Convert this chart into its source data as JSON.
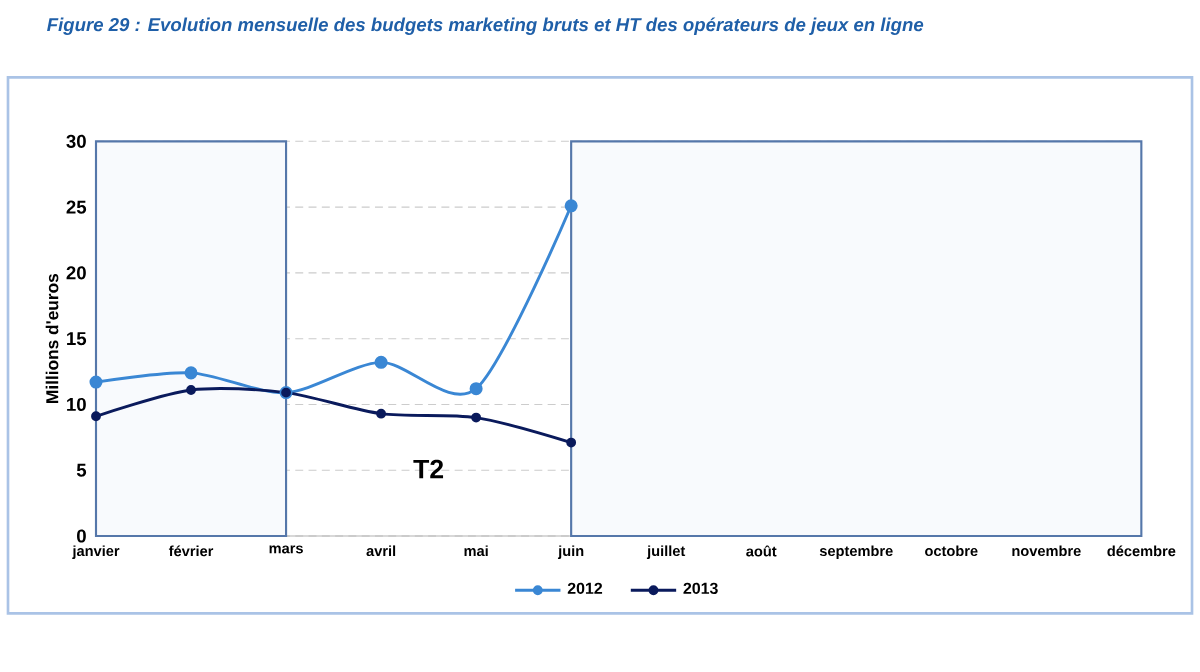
{
  "chart_data": {
    "type": "line",
    "title": "Figure 29 : Evolution mensuelle des budgets marketing bruts et HT des opérateurs de jeux en ligne",
    "ylabel": "Millions d'euros",
    "categories": [
      "janvier",
      "février",
      "mars",
      "avril",
      "mai",
      "juin",
      "juillet",
      "août",
      "septembre",
      "octobre",
      "novembre",
      "décembre"
    ],
    "series": [
      {
        "name": "2012",
        "color": "#3a87d4",
        "values": [
          11.7,
          12.4,
          10.9,
          13.2,
          11.2,
          25.1,
          null,
          null,
          null,
          null,
          null,
          null
        ]
      },
      {
        "name": "2013",
        "color": "#0a1a5c",
        "values": [
          9.1,
          11.1,
          10.9,
          9.3,
          9.0,
          7.1,
          null,
          null,
          null,
          null,
          null,
          null
        ]
      }
    ],
    "ylim": [
      0,
      30
    ],
    "yticks": [
      0,
      5,
      10,
      15,
      20,
      25,
      30
    ],
    "bands": [
      {
        "axis": "x",
        "from": "janvier",
        "to": "mars",
        "color": "#5577aa"
      },
      {
        "axis": "x",
        "from": "juin",
        "to": "décembre",
        "color": "#5577aa"
      }
    ],
    "annotations": [
      "T2"
    ],
    "grid": "y",
    "legend": "bottom",
    "marker": "circle",
    "line_style": "solid"
  }
}
